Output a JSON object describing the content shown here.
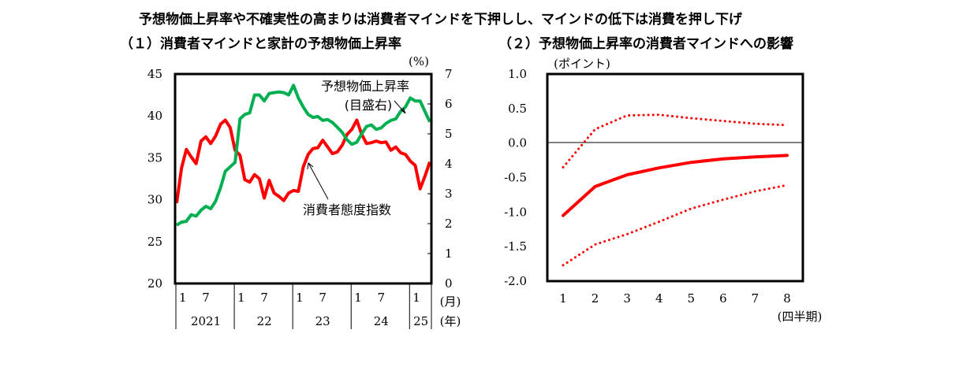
{
  "subtitle": "予想物価上昇率や不確実性の高まりは消費者マインドを下押しし、マインドの低下は消費を押し下げ",
  "chart1": {
    "title": "（１）消費者マインドと家計の予想物価上昇率",
    "left_ticks": [
      "20",
      "25",
      "30",
      "35",
      "40",
      "45"
    ],
    "right_ticks": [
      "0",
      "1",
      "2",
      "3",
      "4",
      "5",
      "6",
      "7"
    ],
    "right_unit": "(%)",
    "month_ticks": [
      "1",
      "7",
      "1",
      "7",
      "1",
      "7",
      "1",
      "7",
      "1"
    ],
    "month_unit": "(月)",
    "year_ticks": [
      "2021",
      "22",
      "23",
      "24",
      "25"
    ],
    "year_unit": "(年)",
    "annotation_expect_1": "予想物価上昇率",
    "annotation_expect_2": "(目盛右)",
    "annotation_cci": "消費者態度指数"
  },
  "chart2": {
    "title": "（２）予想物価上昇率の消費者マインドへの影響",
    "y_unit": "(ポイント)",
    "y_ticks": [
      "1.0",
      "0.5",
      "0.0",
      "-0.5",
      "-1.0",
      "-1.5",
      "-2.0"
    ],
    "x_ticks": [
      "1",
      "2",
      "3",
      "4",
      "5",
      "6",
      "7",
      "8"
    ],
    "x_unit": "(四半期)"
  },
  "chart_data": [
    {
      "type": "line",
      "title": "（１）消費者マインドと家計の予想物価上昇率",
      "x_start": "2021-01",
      "x_end": "2025-05",
      "y_left_lim": [
        20,
        45
      ],
      "y_right_lim": [
        0,
        7
      ],
      "series": [
        {
          "name": "消費者態度指数",
          "axis": "left",
          "color": "#ff0000",
          "values": [
            29.6,
            33.8,
            36.0,
            35.1,
            34.3,
            37.0,
            37.5,
            36.7,
            37.6,
            39.0,
            39.5,
            38.6,
            35.9,
            35.3,
            32.4,
            32.1,
            33.0,
            32.5,
            30.2,
            32.3,
            30.8,
            30.4,
            29.9,
            30.8,
            31.1,
            31.0,
            33.9,
            35.4,
            36.1,
            36.2,
            37.1,
            36.3,
            35.5,
            35.7,
            36.5,
            37.8,
            38.4,
            39.5,
            37.8,
            36.7,
            36.8,
            37.0,
            36.8,
            36.9,
            35.9,
            36.3,
            35.6,
            35.4,
            34.6,
            34.1,
            31.3,
            32.8,
            34.5
          ]
        },
        {
          "name": "予想物価上昇率",
          "axis": "right",
          "color": "#00b050",
          "values": [
            1.95,
            2.05,
            2.08,
            2.3,
            2.25,
            2.45,
            2.58,
            2.5,
            2.75,
            3.2,
            3.75,
            3.9,
            4.05,
            5.5,
            5.65,
            5.7,
            6.3,
            6.3,
            6.1,
            6.35,
            6.38,
            6.4,
            6.38,
            6.3,
            6.62,
            6.2,
            5.9,
            5.65,
            5.55,
            5.58,
            5.45,
            5.48,
            5.38,
            5.22,
            5.05,
            4.8,
            4.65,
            4.72,
            5.0,
            5.25,
            5.3,
            5.15,
            5.2,
            5.35,
            5.45,
            5.5,
            5.75,
            5.9,
            6.2,
            6.1,
            6.1,
            5.75,
            5.4
          ]
        }
      ]
    },
    {
      "type": "line",
      "title": "（２）予想物価上昇率の消費者マインドへの影響",
      "x": [
        1,
        2,
        3,
        4,
        5,
        6,
        7,
        8
      ],
      "ylim": [
        -2.0,
        1.0
      ],
      "series": [
        {
          "name": "response",
          "color": "#ff0000",
          "style": "solid",
          "values": [
            -1.05,
            -0.63,
            -0.46,
            -0.36,
            -0.28,
            -0.23,
            -0.2,
            -0.18
          ]
        },
        {
          "name": "upper",
          "color": "#ff0000",
          "style": "dotted",
          "values": [
            -0.35,
            0.2,
            0.4,
            0.41,
            0.36,
            0.32,
            0.28,
            0.26
          ]
        },
        {
          "name": "lower",
          "color": "#ff0000",
          "style": "dotted",
          "values": [
            -1.77,
            -1.47,
            -1.32,
            -1.14,
            -0.95,
            -0.82,
            -0.7,
            -0.61
          ]
        }
      ]
    }
  ]
}
